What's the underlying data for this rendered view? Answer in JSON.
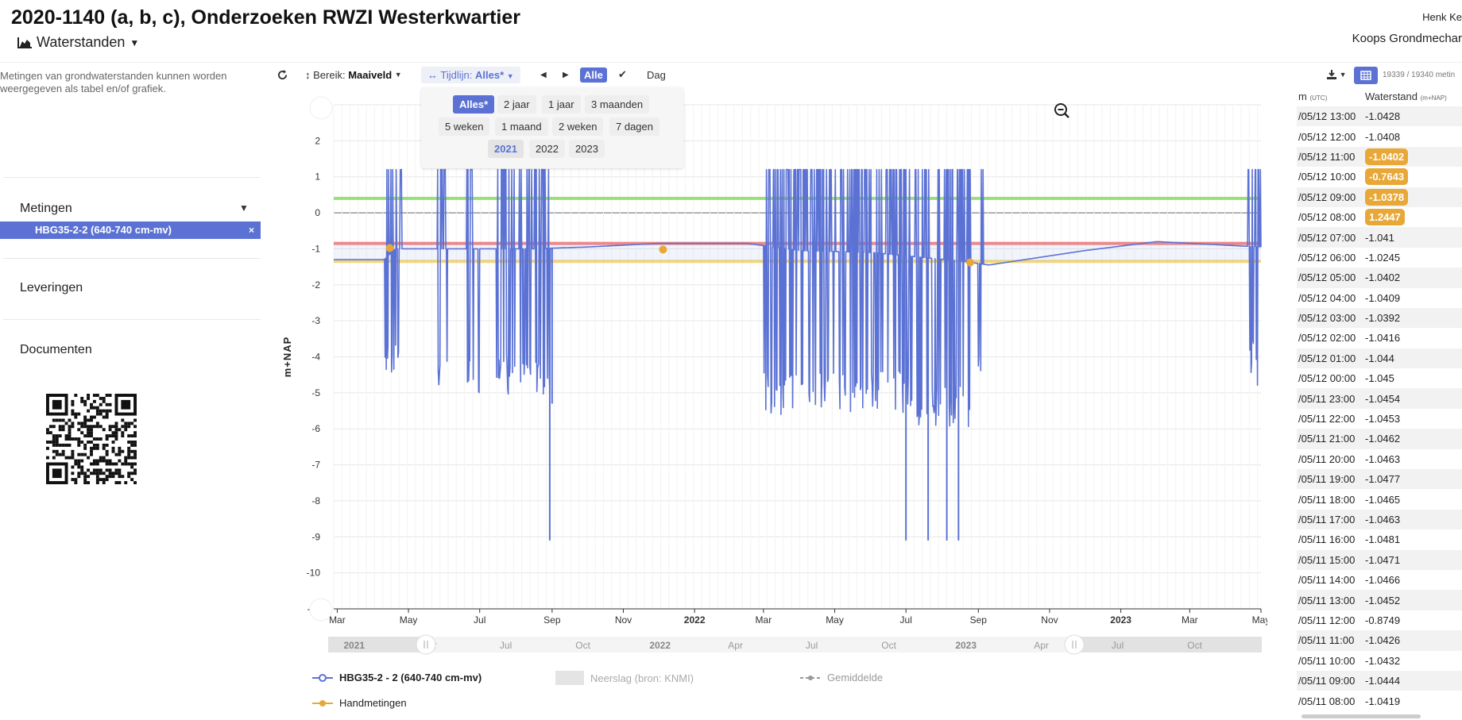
{
  "header": {
    "title": "2020-1140 (a, b, c), Onderzoeken RWZI Westerkwartier",
    "view_label": "Waterstanden",
    "user": "Henk Ke",
    "company": "Koops Grondmechar"
  },
  "sidebar": {
    "intro": "Metingen van grondwaterstanden kunnen worden weergegeven als tabel en/of grafiek.",
    "metingen_label": "Metingen",
    "selected_item": "HBG35-2-2 (640-740 cm-mv)",
    "remove_label": "×",
    "leveringen_label": "Leveringen",
    "documenten_label": "Documenten"
  },
  "toolbar": {
    "bereik_label": "Bereik:",
    "bereik_value": "Maaiveld",
    "tijdlijn_label": "Tijdlijn:",
    "tijdlijn_value": "Alles*",
    "alle_label": "Alle",
    "dag_label": "Dag",
    "count_text": "19339 / 19340 metin"
  },
  "range_options": {
    "row1": [
      "Alles*",
      "2 jaar",
      "1 jaar",
      "3 maanden"
    ],
    "row2": [
      "5 weken",
      "1 maand",
      "2 weken",
      "7 dagen"
    ],
    "years": [
      "2021",
      "2022",
      "2023"
    ],
    "active": "Alles*",
    "active_year": "2021"
  },
  "chart_data": {
    "type": "line",
    "ylabel": "m+NAP",
    "ylim": [
      -11,
      3
    ],
    "yticks": [
      3,
      2,
      1,
      0,
      -1,
      -2,
      -3,
      -4,
      -5,
      -6,
      -7,
      -8,
      -9,
      -10,
      -11
    ],
    "xlim": [
      "2021-02-26",
      "2023-05-01"
    ],
    "xticks": [
      {
        "date": "2021-03-01",
        "label": "Mar"
      },
      {
        "date": "2021-05-01",
        "label": "May"
      },
      {
        "date": "2021-07-01",
        "label": "Jul"
      },
      {
        "date": "2021-09-01",
        "label": "Sep"
      },
      {
        "date": "2021-11-01",
        "label": "Nov"
      },
      {
        "date": "2022-01-01",
        "label": "2022",
        "bold": true
      },
      {
        "date": "2022-03-01",
        "label": "Mar"
      },
      {
        "date": "2022-05-01",
        "label": "May"
      },
      {
        "date": "2022-07-01",
        "label": "Jul"
      },
      {
        "date": "2022-09-01",
        "label": "Sep"
      },
      {
        "date": "2022-11-01",
        "label": "Nov"
      },
      {
        "date": "2023-01-01",
        "label": "2023",
        "bold": true
      },
      {
        "date": "2023-03-01",
        "label": "Mar"
      },
      {
        "date": "2023-05-01",
        "label": "May"
      }
    ],
    "navigator_labels": [
      {
        "date": "2021-01-01",
        "label": "2021",
        "bold": true
      },
      {
        "date": "2021-04-01",
        "label": "Apr"
      },
      {
        "date": "2021-07-01",
        "label": "Jul"
      },
      {
        "date": "2021-10-01",
        "label": "Oct"
      },
      {
        "date": "2022-01-01",
        "label": "2022",
        "bold": true
      },
      {
        "date": "2022-04-01",
        "label": "Apr"
      },
      {
        "date": "2022-07-01",
        "label": "Jul"
      },
      {
        "date": "2022-10-01",
        "label": "Oct"
      },
      {
        "date": "2023-01-01",
        "label": "2023",
        "bold": true
      },
      {
        "date": "2023-04-01",
        "label": "Apr"
      },
      {
        "date": "2023-07-01",
        "label": "Jul"
      },
      {
        "date": "2023-10-01",
        "label": "Oct"
      }
    ],
    "reference_lines": [
      {
        "value": 0.4,
        "color": "#7ed957"
      },
      {
        "value": -0.85,
        "color": "#ee6b6b"
      },
      {
        "value": -1.35,
        "color": "#f2cf5b"
      }
    ],
    "series": [
      {
        "name": "HBG35-2 - 2 (640-740 cm-mv)",
        "color": "#5b72d4",
        "baseline": [
          [
            "2021-02-26",
            -1.3
          ],
          [
            "2021-04-10",
            -1.3
          ],
          [
            "2021-04-20",
            -1.0
          ],
          [
            "2021-06-01",
            -1.0
          ],
          [
            "2021-08-15",
            -1.0
          ],
          [
            "2021-10-01",
            -0.95
          ],
          [
            "2021-12-01",
            -0.85
          ],
          [
            "2022-02-15",
            -0.85
          ],
          [
            "2022-04-01",
            -1.05
          ],
          [
            "2022-06-01",
            -1.1
          ],
          [
            "2022-08-20",
            -1.35
          ],
          [
            "2022-09-10",
            -1.45
          ],
          [
            "2022-12-01",
            -1.05
          ],
          [
            "2023-02-01",
            -0.8
          ],
          [
            "2023-05-01",
            -0.95
          ]
        ],
        "noise_bands": [
          {
            "from": "2021-04-10",
            "to": "2021-04-25",
            "high": 1.2,
            "low": -4.8
          },
          {
            "from": "2021-05-25",
            "to": "2021-06-05",
            "high": 1.2,
            "low": -5.0
          },
          {
            "from": "2021-06-20",
            "to": "2021-07-01",
            "high": 1.2,
            "low": -5.0
          },
          {
            "from": "2021-07-15",
            "to": "2021-08-31",
            "high": 1.2,
            "low": -5.1
          },
          {
            "from": "2022-03-01",
            "to": "2022-07-05",
            "high": 1.2,
            "low": -5.6
          },
          {
            "from": "2022-07-05",
            "to": "2022-08-25",
            "high": 1.2,
            "low": -6.0
          },
          {
            "from": "2022-09-01",
            "to": "2022-09-05",
            "high": 1.2,
            "low": -5.1
          },
          {
            "from": "2023-04-20",
            "to": "2023-04-25",
            "high": 1.2,
            "low": -4.5
          },
          {
            "from": "2023-04-26",
            "to": "2023-05-01",
            "high": 1.2,
            "low": -4.8
          }
        ],
        "spikes": [
          [
            "2021-08-30",
            -9.1
          ],
          [
            "2021-09-01",
            -5.3
          ],
          [
            "2022-07-01",
            -9.1
          ],
          [
            "2022-07-20",
            -9.1
          ],
          [
            "2022-08-05",
            -9.1
          ],
          [
            "2022-08-15",
            -9.1
          ]
        ]
      },
      {
        "name": "Handmetingen",
        "color": "#e8a838",
        "points": [
          [
            "2021-04-15",
            -0.98
          ],
          [
            "2021-12-05",
            -1.02
          ],
          [
            "2022-08-25",
            -1.38
          ]
        ]
      }
    ]
  },
  "legend": {
    "series_label": "HBG35-2 - 2 (640-740 cm-mv)",
    "neerslag_label": "Neerslag (bron: KNMI)",
    "gemiddelde_label": "Gemiddelde",
    "handmetingen_label": "Handmetingen"
  },
  "table": {
    "time_header": "m",
    "time_unit": "(UTC)",
    "value_header": "Waterstand",
    "value_unit": "(m+NAP)",
    "rows": [
      {
        "time": "/05/12 13:00",
        "value": "-1.0428",
        "flag": false
      },
      {
        "time": "/05/12 12:00",
        "value": "-1.0408",
        "flag": false
      },
      {
        "time": "/05/12 11:00",
        "value": "-1.0402",
        "flag": true
      },
      {
        "time": "/05/12 10:00",
        "value": "-0.7643",
        "flag": true
      },
      {
        "time": "/05/12 09:00",
        "value": "-1.0378",
        "flag": true
      },
      {
        "time": "/05/12 08:00",
        "value": "1.2447",
        "flag": true
      },
      {
        "time": "/05/12 07:00",
        "value": "-1.041",
        "flag": false
      },
      {
        "time": "/05/12 06:00",
        "value": "-1.0245",
        "flag": false
      },
      {
        "time": "/05/12 05:00",
        "value": "-1.0402",
        "flag": false
      },
      {
        "time": "/05/12 04:00",
        "value": "-1.0409",
        "flag": false
      },
      {
        "time": "/05/12 03:00",
        "value": "-1.0392",
        "flag": false
      },
      {
        "time": "/05/12 02:00",
        "value": "-1.0416",
        "flag": false
      },
      {
        "time": "/05/12 01:00",
        "value": "-1.044",
        "flag": false
      },
      {
        "time": "/05/12 00:00",
        "value": "-1.045",
        "flag": false
      },
      {
        "time": "/05/11 23:00",
        "value": "-1.0454",
        "flag": false
      },
      {
        "time": "/05/11 22:00",
        "value": "-1.0453",
        "flag": false
      },
      {
        "time": "/05/11 21:00",
        "value": "-1.0462",
        "flag": false
      },
      {
        "time": "/05/11 20:00",
        "value": "-1.0463",
        "flag": false
      },
      {
        "time": "/05/11 19:00",
        "value": "-1.0477",
        "flag": false
      },
      {
        "time": "/05/11 18:00",
        "value": "-1.0465",
        "flag": false
      },
      {
        "time": "/05/11 17:00",
        "value": "-1.0463",
        "flag": false
      },
      {
        "time": "/05/11 16:00",
        "value": "-1.0481",
        "flag": false
      },
      {
        "time": "/05/11 15:00",
        "value": "-1.0471",
        "flag": false
      },
      {
        "time": "/05/11 14:00",
        "value": "-1.0466",
        "flag": false
      },
      {
        "time": "/05/11 13:00",
        "value": "-1.0452",
        "flag": false
      },
      {
        "time": "/05/11 12:00",
        "value": "-0.8749",
        "flag": false
      },
      {
        "time": "/05/11 11:00",
        "value": "-1.0426",
        "flag": false
      },
      {
        "time": "/05/11 10:00",
        "value": "-1.0432",
        "flag": false
      },
      {
        "time": "/05/11 09:00",
        "value": "-1.0444",
        "flag": false
      },
      {
        "time": "/05/11 08:00",
        "value": "-1.0419",
        "flag": false
      }
    ]
  }
}
